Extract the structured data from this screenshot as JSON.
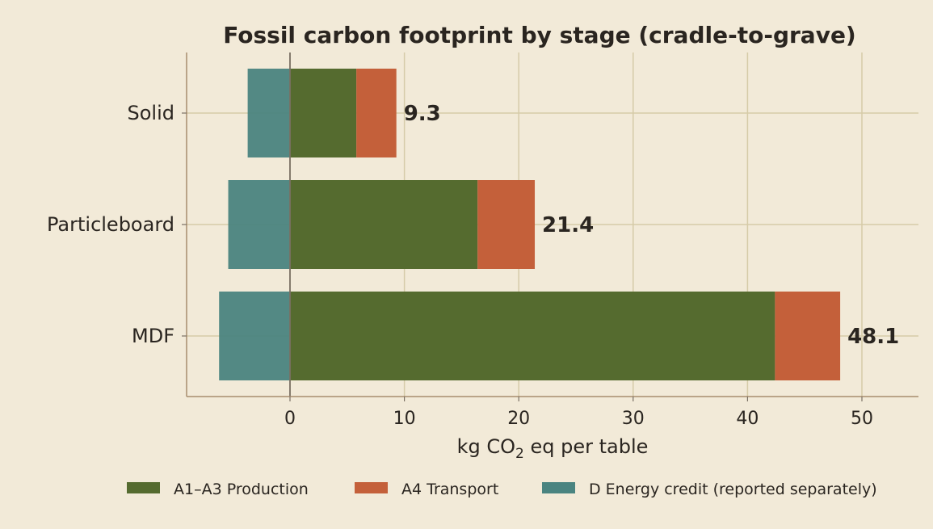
{
  "chart_data": {
    "type": "bar",
    "orientation": "horizontal",
    "stacked": true,
    "title": "Fossil carbon footprint by stage (cradle-to-grave)",
    "xlabel_parts": [
      "kg CO",
      "2",
      " eq per table"
    ],
    "categories": [
      "Solid",
      "Particleboard",
      "MDF"
    ],
    "series": [
      {
        "name": "A1–A3 Production",
        "color": "#556b2f",
        "values": [
          5.8,
          16.4,
          42.4
        ]
      },
      {
        "name": "A4 Transport",
        "color": "#c4603a",
        "values": [
          3.5,
          5.0,
          5.7
        ]
      },
      {
        "name": "D Energy credit (reported separately)",
        "color": "#4a8480",
        "values": [
          -3.7,
          -5.4,
          -6.2
        ]
      }
    ],
    "totals": [
      "9.3",
      "21.4",
      "48.1"
    ],
    "xlim": [
      -9,
      55
    ],
    "xticks": [
      0,
      10,
      20,
      30,
      40,
      50
    ],
    "grid": true,
    "legend_position": "bottom"
  }
}
